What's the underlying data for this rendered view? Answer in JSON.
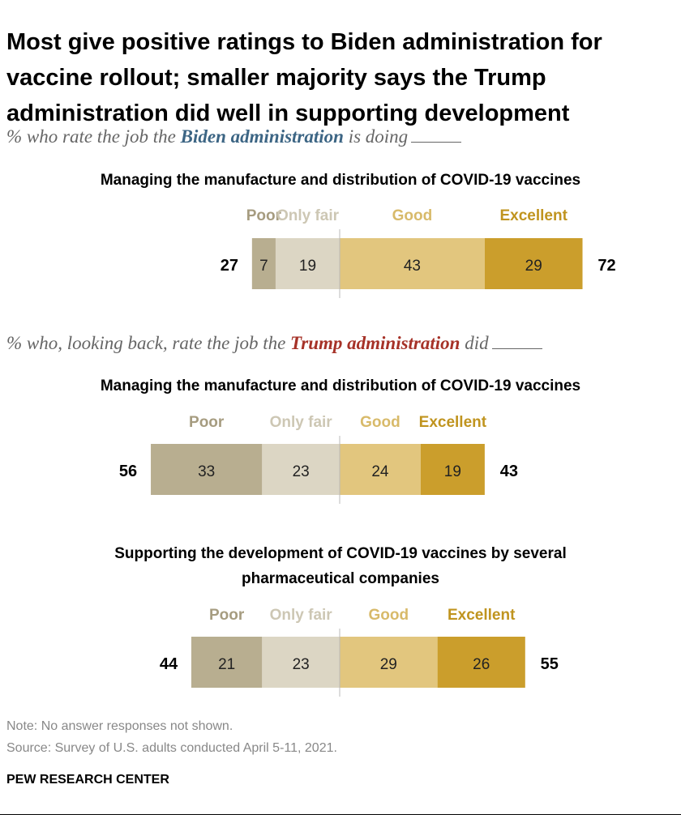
{
  "title": "Most give positive ratings to Biden administration for vaccine rollout; smaller majority says the Trump administration did well in supporting development",
  "subtitle_biden": {
    "before": "% who rate the job the ",
    "emphasis": "Biden administration",
    "after": " is doing"
  },
  "subtitle_trump": {
    "before": "% who, looking back, rate the job the ",
    "emphasis": "Trump administration",
    "after": " did"
  },
  "colors": {
    "poor": "#b8ae90",
    "only_fair": "#dcd6c4",
    "good": "#e2c67e",
    "excellent": "#cb9e2c",
    "biden": "#3c6584",
    "trump": "#a63228"
  },
  "chart_data": [
    {
      "type": "bar",
      "stacked": "diverging",
      "title": "Managing the manufacture and distribution of COVID-19 vaccines",
      "categories": [
        "Poor",
        "Only fair",
        "Good",
        "Excellent"
      ],
      "values": [
        7,
        19,
        43,
        29
      ],
      "net_negative": 27,
      "net_positive": 72
    },
    {
      "type": "bar",
      "stacked": "diverging",
      "title": "Managing the manufacture and distribution of COVID-19 vaccines",
      "categories": [
        "Poor",
        "Only fair",
        "Good",
        "Excellent"
      ],
      "values": [
        33,
        23,
        24,
        19
      ],
      "net_negative": 56,
      "net_positive": 43
    },
    {
      "type": "bar",
      "stacked": "diverging",
      "title": "Supporting the development of COVID-19 vaccines by several pharmaceutical companies",
      "categories": [
        "Poor",
        "Only fair",
        "Good",
        "Excellent"
      ],
      "values": [
        21,
        23,
        29,
        26
      ],
      "net_negative": 44,
      "net_positive": 55
    }
  ],
  "footer": {
    "note": "Note: No answer responses not shown.",
    "source": "Source: Survey of U.S. adults conducted April 5-11, 2021.",
    "brand": "PEW RESEARCH CENTER"
  }
}
